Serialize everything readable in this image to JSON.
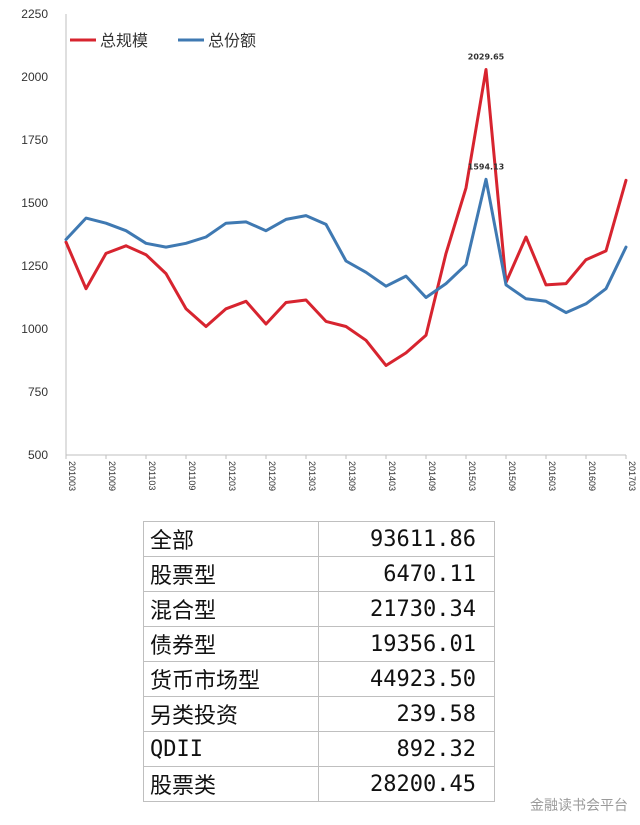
{
  "chart_data": {
    "type": "line",
    "x": [
      "2010Q1",
      "2010Q2",
      "2010Q3",
      "2010Q4",
      "2011Q1",
      "2011Q2",
      "2011Q3",
      "2011Q4",
      "2012Q1",
      "2012Q2",
      "2012Q3",
      "2012Q4",
      "2013Q1",
      "2013Q2",
      "2013Q3",
      "2013Q4",
      "2014Q1",
      "2014Q2",
      "2014Q3",
      "2014Q4",
      "2015Q1",
      "2015Q2",
      "2015Q3",
      "2015Q4",
      "2016Q1",
      "2016Q2",
      "2016Q3",
      "2016Q4",
      "2017Q1"
    ],
    "x_tick_labels": [
      "201003",
      "201009",
      "201103",
      "201109",
      "201203",
      "201209",
      "201303",
      "201309",
      "201403",
      "201409",
      "201503",
      "201509",
      "201603",
      "201609",
      "201703"
    ],
    "ylim": [
      500,
      2250
    ],
    "y_ticks": [
      500,
      750,
      1000,
      1250,
      1500,
      1750,
      2000,
      2250
    ],
    "legend_position": "top-left",
    "grid": false,
    "series": [
      {
        "name": "总规模",
        "color": "#d7242f",
        "values": [
          1345,
          1160,
          1300,
          1330,
          1295,
          1220,
          1080,
          1010,
          1080,
          1110,
          1020,
          1105,
          1115,
          1030,
          1010,
          955,
          855,
          905,
          975,
          1300,
          1560,
          2029.65,
          1185,
          1365,
          1175,
          1180,
          1275,
          1310,
          1590
        ]
      },
      {
        "name": "总份额",
        "color": "#3f79b2",
        "values": [
          1355,
          1440,
          1420,
          1390,
          1340,
          1325,
          1340,
          1365,
          1420,
          1425,
          1390,
          1435,
          1450,
          1415,
          1270,
          1225,
          1170,
          1210,
          1125,
          1180,
          1255,
          1594.13,
          1175,
          1120,
          1110,
          1065,
          1100,
          1160,
          1325
        ]
      }
    ],
    "annotations": [
      {
        "text": "2029.65",
        "series": "总规模",
        "x": "2015Q2",
        "y": 2029.65
      },
      {
        "text": "1594.13",
        "series": "总份额",
        "x": "2015Q2",
        "y": 1594.13
      }
    ]
  },
  "table": {
    "rows": [
      {
        "label": "全部",
        "value": "93611.86"
      },
      {
        "label": "股票型",
        "value": "6470.11"
      },
      {
        "label": "混合型",
        "value": "21730.34"
      },
      {
        "label": "债券型",
        "value": "19356.01"
      },
      {
        "label": "货币市场型",
        "value": "44923.50"
      },
      {
        "label": "另类投资",
        "value": "239.58"
      },
      {
        "label": "QDII",
        "value": "892.32"
      },
      {
        "label": "股票类",
        "value": "28200.45"
      }
    ]
  },
  "watermark": "金融读书会平台"
}
